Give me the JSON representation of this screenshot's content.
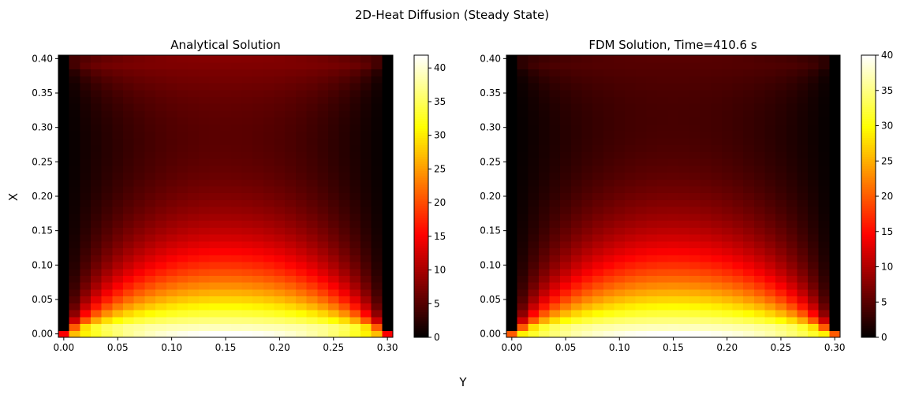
{
  "figure": {
    "suptitle": "2D-Heat Diffusion (Steady State)",
    "shared_xlabel": "Y",
    "shared_ylabel": "X"
  },
  "chart_data": [
    {
      "type": "heatmap",
      "title": "Analytical Solution",
      "xlabel": "Y",
      "ylabel": "X",
      "x_ticks": [
        "0.00",
        "0.05",
        "0.10",
        "0.15",
        "0.20",
        "0.25",
        "0.30"
      ],
      "y_ticks": [
        "0.00",
        "0.05",
        "0.10",
        "0.15",
        "0.20",
        "0.25",
        "0.30",
        "0.35",
        "0.40"
      ],
      "x_tick_values": [
        0,
        0.05,
        0.1,
        0.15,
        0.2,
        0.25,
        0.3
      ],
      "y_tick_values": [
        0,
        0.05,
        0.1,
        0.15,
        0.2,
        0.25,
        0.3,
        0.35,
        0.4
      ],
      "xlim": [
        -0.005,
        0.305
      ],
      "ylim": [
        -0.005,
        0.405
      ],
      "grid_nx": 31,
      "grid_ny": 41,
      "colormap": "hot",
      "vmin": 0,
      "vmax": 41.9,
      "colorbar_ticks": [
        "0",
        "5",
        "10",
        "15",
        "20",
        "25",
        "30",
        "35",
        "40"
      ],
      "colorbar_tick_values": [
        0,
        5,
        10,
        15,
        20,
        25,
        30,
        35,
        40
      ],
      "field": {
        "description_of_values": "steady-state temperature",
        "bottom_edge_peak": 41.9,
        "bottom_edge_corner_low": 15,
        "top_edge": 8,
        "left_edge": 0,
        "right_edge": 0
      },
      "grid": false
    },
    {
      "type": "heatmap",
      "title": "FDM Solution, Time=410.6 s",
      "xlabel": "Y",
      "ylabel": "X",
      "x_ticks": [
        "0.00",
        "0.05",
        "0.10",
        "0.15",
        "0.20",
        "0.25",
        "0.30"
      ],
      "y_ticks": [
        "0.00",
        "0.05",
        "0.10",
        "0.15",
        "0.20",
        "0.25",
        "0.30",
        "0.35",
        "0.40"
      ],
      "x_tick_values": [
        0,
        0.05,
        0.1,
        0.15,
        0.2,
        0.25,
        0.3
      ],
      "y_tick_values": [
        0,
        0.05,
        0.1,
        0.15,
        0.2,
        0.25,
        0.3,
        0.35,
        0.4
      ],
      "xlim": [
        -0.005,
        0.305
      ],
      "ylim": [
        -0.005,
        0.405
      ],
      "grid_nx": 31,
      "grid_ny": 41,
      "colormap": "hot",
      "vmin": 0,
      "vmax": 40,
      "colorbar_ticks": [
        "0",
        "5",
        "10",
        "15",
        "20",
        "25",
        "30",
        "35",
        "40"
      ],
      "colorbar_tick_values": [
        0,
        5,
        10,
        15,
        20,
        25,
        30,
        35,
        40
      ],
      "field": {
        "description_of_values": "steady-state temperature",
        "bottom_edge_peak": 40,
        "bottom_edge_corner_low": 20,
        "top_edge": 5,
        "left_edge": 0,
        "right_edge": 0
      },
      "grid": false
    }
  ]
}
